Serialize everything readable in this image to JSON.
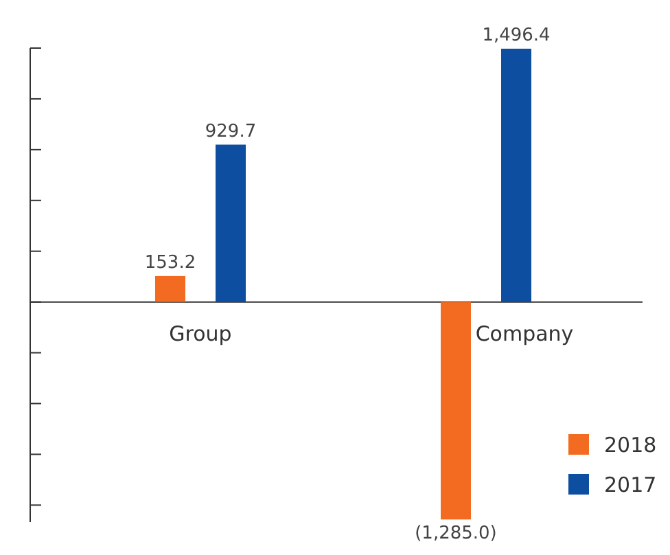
{
  "chart_data": {
    "type": "bar",
    "categories": [
      "Group",
      "Company"
    ],
    "series": [
      {
        "name": "2018",
        "color": "#f26b21",
        "values": [
          153.2,
          -1285.0
        ],
        "value_labels": [
          "153.2",
          "(1,285.0)"
        ]
      },
      {
        "name": "2017",
        "color": "#0d4ea1",
        "values": [
          929.7,
          1496.4
        ],
        "value_labels": [
          "929.7",
          "1,496.4"
        ]
      }
    ],
    "ylim": [
      -1300,
      1500
    ],
    "yticks": [
      {
        "value": -1200,
        "label": null
      },
      {
        "value": -900,
        "label": null
      },
      {
        "value": -600,
        "label": null
      },
      {
        "value": -300,
        "label": null
      },
      {
        "value": 0,
        "label": null
      },
      {
        "value": 300,
        "label": null
      },
      {
        "value": 600,
        "label": null
      },
      {
        "value": 900,
        "label": null
      },
      {
        "value": 1200,
        "label": null
      },
      {
        "value": 1500,
        "label": null
      }
    ],
    "tick_labels": "x",
    "grid": false,
    "legend": "bottom right"
  }
}
